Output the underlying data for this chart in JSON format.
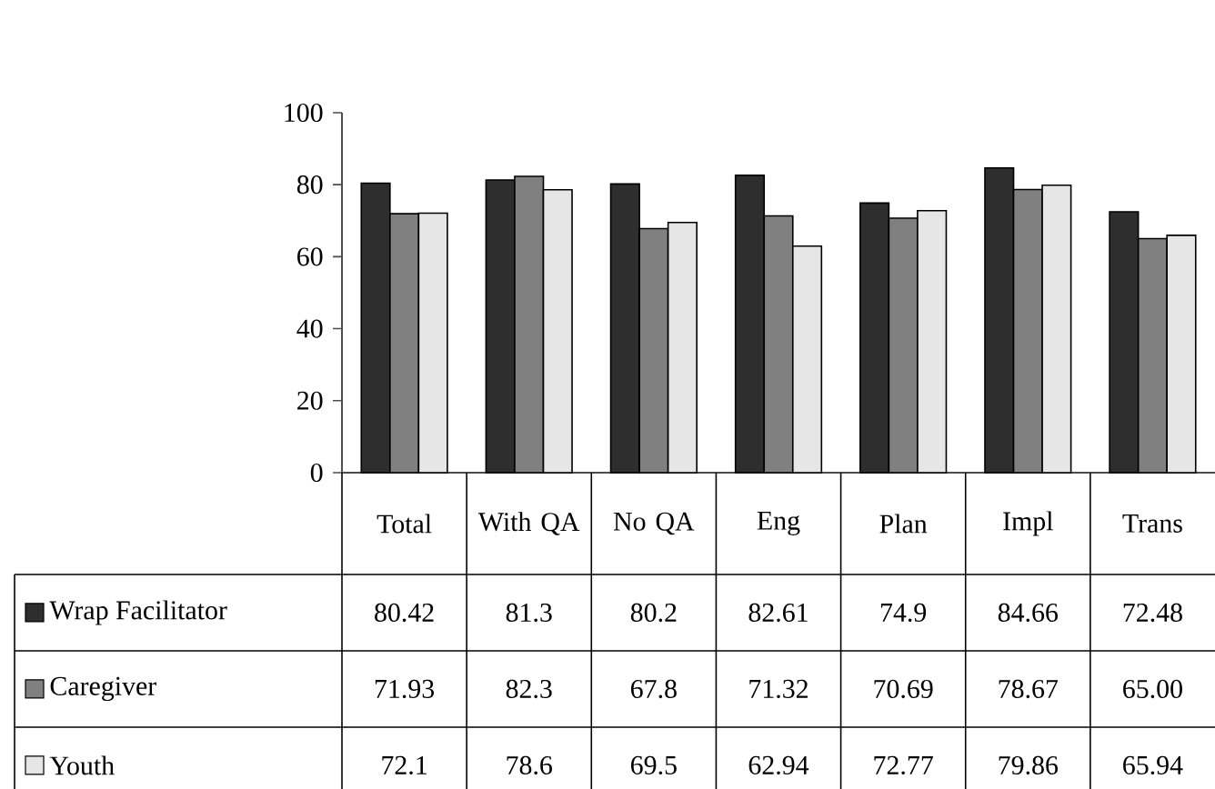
{
  "chart_data": {
    "type": "bar",
    "categories": [
      "Total",
      "With QA",
      "No QA",
      "Eng",
      "Plan",
      "Impl",
      "Trans"
    ],
    "series": [
      {
        "name": "Wrap Facilitator",
        "color": "#2e2e2e",
        "values": [
          80.42,
          81.3,
          80.2,
          82.61,
          74.9,
          84.66,
          72.48
        ],
        "value_labels": [
          "80.42",
          "81.3",
          "80.2",
          "82.61",
          "74.9",
          "84.66",
          "72.48"
        ]
      },
      {
        "name": "Caregiver",
        "color": "#808080",
        "values": [
          71.93,
          82.3,
          67.8,
          71.32,
          70.69,
          78.67,
          65.0
        ],
        "value_labels": [
          "71.93",
          "82.3",
          "67.8",
          "71.32",
          "70.69",
          "78.67",
          "65.00"
        ]
      },
      {
        "name": "Youth",
        "color": "#e6e6e6",
        "values": [
          72.1,
          78.6,
          69.5,
          62.94,
          72.77,
          79.86,
          65.94
        ],
        "value_labels": [
          "72.1",
          "78.6",
          "69.5",
          "62.94",
          "72.77",
          "79.86",
          "65.94"
        ]
      }
    ],
    "ylim": [
      0,
      100
    ],
    "yticks": [
      0,
      20,
      40,
      60,
      80,
      100
    ],
    "legend": "bottom"
  }
}
